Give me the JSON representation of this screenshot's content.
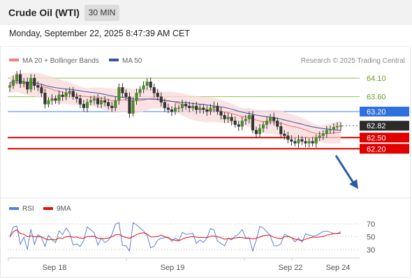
{
  "header": {
    "title": "Crude Oil (WTI)",
    "timeframe": "30 MIN"
  },
  "timestamp": "Monday, September 22, 2025 8:47:39 AM CET",
  "legend": {
    "ma20": {
      "label": "MA 20 + Bollinger Bands",
      "color": "#f08080"
    },
    "ma50": {
      "label": "MA 50",
      "color": "#3355aa"
    },
    "credit": "Research © 2025 Trading Central"
  },
  "rsi_legend": {
    "rsi": {
      "label": "RSI",
      "color": "#5b7fd6"
    },
    "ma9": {
      "label": "9MA",
      "color": "#e01010"
    }
  },
  "levels": [
    {
      "label": "64.10",
      "value": 64.1,
      "kind": "target",
      "color": "#8bc34a"
    },
    {
      "label": "63.60",
      "value": 63.6,
      "kind": "target",
      "color": "#8bc34a"
    },
    {
      "label": "63.20",
      "value": 63.2,
      "kind": "pivot",
      "color": "#3b7cf0"
    },
    {
      "label": "62.82",
      "value": 62.82,
      "kind": "last",
      "color": "#222222"
    },
    {
      "label": "62.50",
      "value": 62.5,
      "kind": "support",
      "color": "#e00000"
    },
    {
      "label": "62.20",
      "value": 62.2,
      "kind": "support",
      "color": "#e00000"
    }
  ],
  "rsi_ticks": [
    "70",
    "50",
    "30"
  ],
  "x_labels": [
    "Sep 18",
    "Sep 19",
    "Sep 22",
    "Sep 24"
  ],
  "chart_data": {
    "type": "candlestick",
    "ylim": [
      62.05,
      64.55
    ],
    "close": [
      63.9,
      64.05,
      64.2,
      63.95,
      64.0,
      63.8,
      64.1,
      63.9,
      63.85,
      63.7,
      63.4,
      63.5,
      63.55,
      63.5,
      63.65,
      63.6,
      63.7,
      63.75,
      63.6,
      63.55,
      63.4,
      63.3,
      63.45,
      63.5,
      63.55,
      63.4,
      63.5,
      63.45,
      63.35,
      63.3,
      63.5,
      63.85,
      63.7,
      63.6,
      63.15,
      63.5,
      63.7,
      63.8,
      63.9,
      64.0,
      63.85,
      63.7,
      63.6,
      63.45,
      63.3,
      63.25,
      63.2,
      63.3,
      63.3,
      63.4,
      63.35,
      63.3,
      63.35,
      63.25,
      63.3,
      63.25,
      63.2,
      63.3,
      63.35,
      63.2,
      63.1,
      63.0,
      63.05,
      62.95,
      62.85,
      62.8,
      62.95,
      63.0,
      63.1,
      62.7,
      62.6,
      62.75,
      62.85,
      62.95,
      63.05,
      62.95,
      62.8,
      62.6,
      62.55,
      62.45,
      62.4,
      62.35,
      62.45,
      62.4,
      62.35,
      62.4,
      62.35,
      62.5,
      62.55,
      62.6,
      62.7,
      62.72,
      62.78,
      62.8,
      62.82
    ],
    "ma20_start": 63.95,
    "ma20_end": 62.7,
    "ma50_start": 64.05,
    "ma50_end": 62.75,
    "bollinger_halfwidth": 0.28,
    "rsi": {
      "ylim": [
        20,
        80
      ],
      "ticks": [
        70,
        50,
        30
      ],
      "last_rsi": 58,
      "last_ma9": 58
    },
    "forecast": {
      "from": 62.82,
      "to": 62.2,
      "direction": "down"
    }
  }
}
